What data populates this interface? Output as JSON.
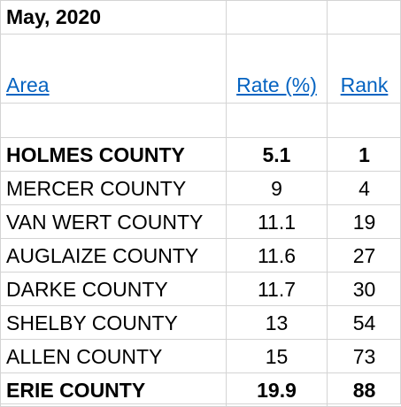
{
  "title": "May, 2020",
  "columns": {
    "area": "Area",
    "rate": "Rate (%)",
    "rank": "Rank"
  },
  "rows": [
    {
      "area": "HOLMES COUNTY",
      "rate": "5.1",
      "rank": "1",
      "bold": true
    },
    {
      "area": "MERCER COUNTY",
      "rate": "9",
      "rank": "4",
      "bold": false
    },
    {
      "area": "VAN WERT COUNTY",
      "rate": "11.1",
      "rank": "19",
      "bold": false
    },
    {
      "area": "AUGLAIZE COUNTY",
      "rate": "11.6",
      "rank": "27",
      "bold": false
    },
    {
      "area": "DARKE COUNTY",
      "rate": "11.7",
      "rank": "30",
      "bold": false
    },
    {
      "area": "SHELBY COUNTY",
      "rate": "13",
      "rank": "54",
      "bold": false
    },
    {
      "area": "ALLEN COUNTY",
      "rate": "15",
      "rank": "73",
      "bold": false
    },
    {
      "area": "ERIE COUNTY",
      "rate": "19.9",
      "rank": "88",
      "bold": true
    }
  ],
  "colors": {
    "link": "#0563c1",
    "gridline": "#d4d4d4"
  }
}
